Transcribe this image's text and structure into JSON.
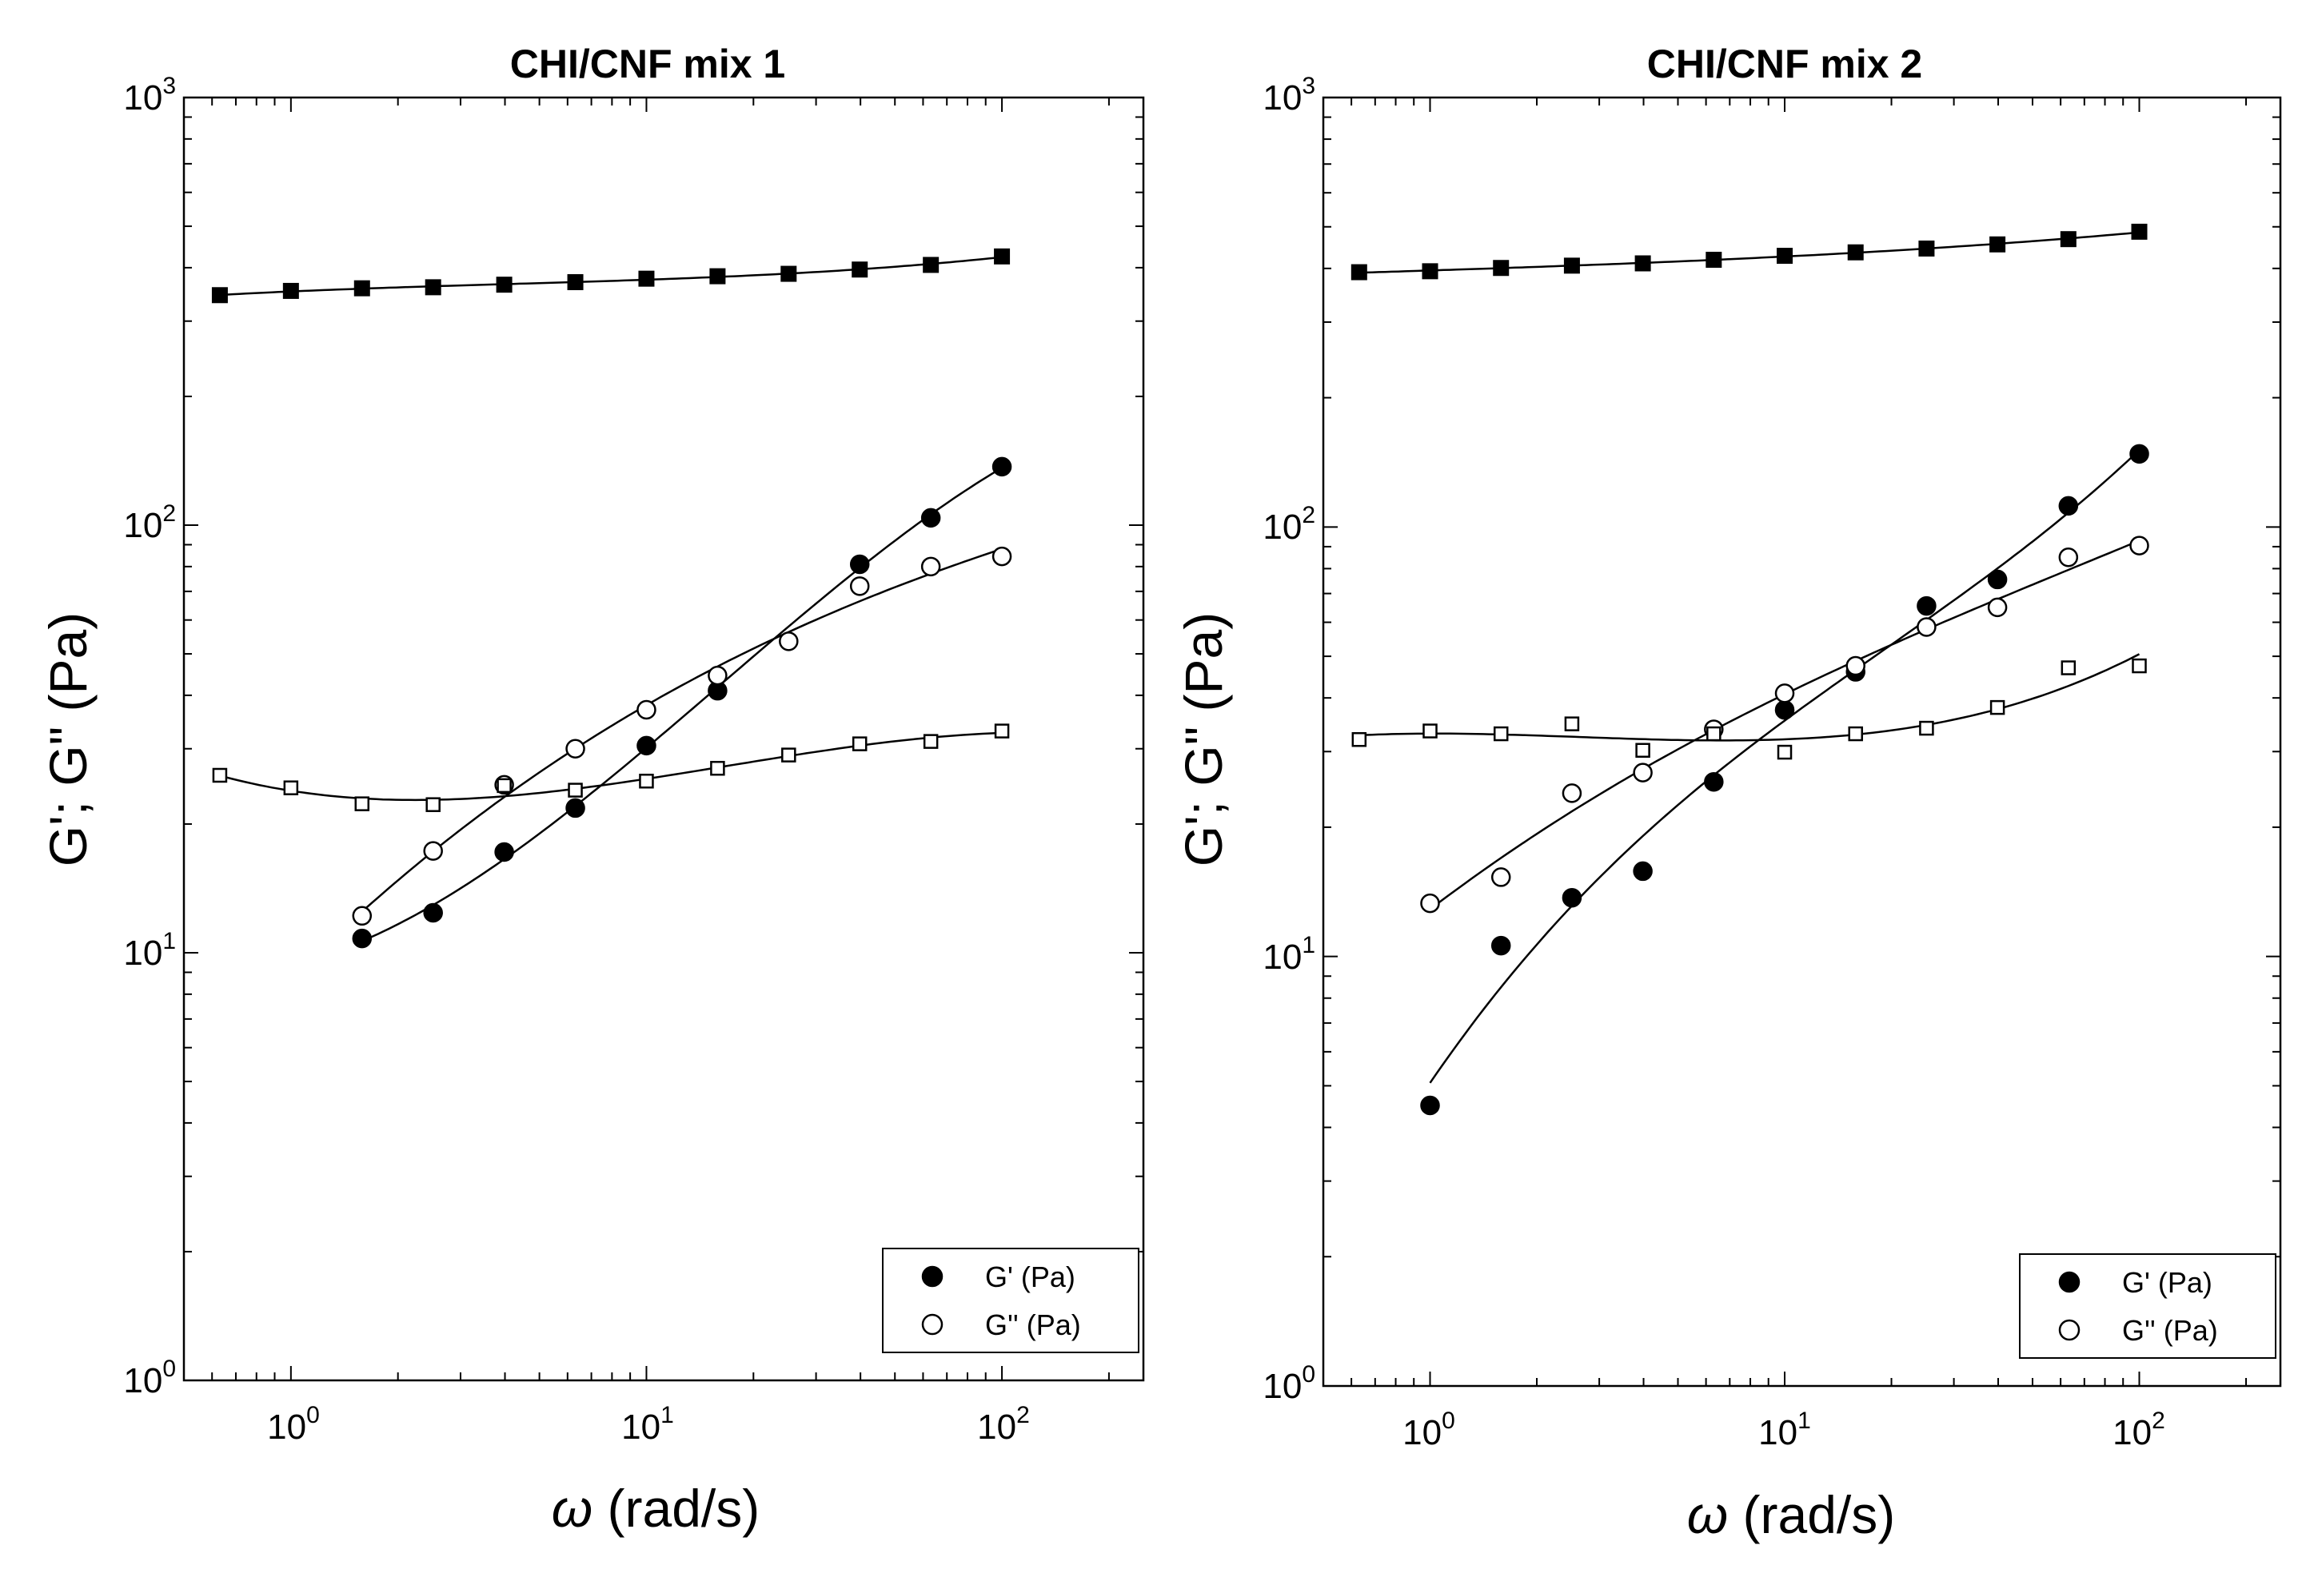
{
  "figure": {
    "panels": [
      {
        "title": "CHI/CNF mix 1",
        "xlabel_symbol": "ω",
        "xlabel_text": " (rad/s)",
        "ylabel": "G'; G\" (Pa)",
        "x_tick_labels": [
          {
            "base": "10",
            "exp": "0"
          },
          {
            "base": "10",
            "exp": "1"
          },
          {
            "base": "10",
            "exp": "2"
          }
        ],
        "y_tick_labels": [
          {
            "base": "10",
            "exp": "0"
          },
          {
            "base": "10",
            "exp": "1"
          },
          {
            "base": "10",
            "exp": "2"
          },
          {
            "base": "10",
            "exp": "3"
          }
        ],
        "legend": [
          "G' (Pa)",
          "G'' (Pa)"
        ]
      },
      {
        "title": "CHI/CNF mix 2",
        "xlabel_symbol": "ω",
        "xlabel_text": " (rad/s)",
        "ylabel": "G'; G\" (Pa)",
        "x_tick_labels": [
          {
            "base": "10",
            "exp": "0"
          },
          {
            "base": "10",
            "exp": "1"
          },
          {
            "base": "10",
            "exp": "2"
          }
        ],
        "y_tick_labels": [
          {
            "base": "10",
            "exp": "0"
          },
          {
            "base": "10",
            "exp": "1"
          },
          {
            "base": "10",
            "exp": "2"
          },
          {
            "base": "10",
            "exp": "3"
          }
        ],
        "legend": [
          "G' (Pa)",
          "G'' (Pa)"
        ]
      }
    ]
  },
  "chart_data": [
    {
      "type": "scatter",
      "title": "CHI/CNF mix 1",
      "xlabel": "ω (rad/s)",
      "ylabel": "G'; G\" (Pa)",
      "xscale": "log",
      "yscale": "log",
      "xlim": [
        0.5,
        250
      ],
      "ylim": [
        1,
        1000
      ],
      "legend_position": "bottom-right",
      "legend": [
        "G' (Pa)",
        "G'' (Pa)"
      ],
      "series": [
        {
          "name": "G' (Pa)",
          "marker": "filled-circle",
          "legend": true,
          "x": [
            1.585,
            2.512,
            3.981,
            6.31,
            10,
            15.85,
            39.81,
            63.1,
            100
          ],
          "y": [
            10.8,
            12.4,
            17.2,
            21.8,
            30.5,
            41,
            81,
            104,
            137
          ]
        },
        {
          "name": "G'' (Pa)",
          "marker": "open-circle",
          "legend": true,
          "x": [
            1.585,
            2.512,
            3.981,
            6.31,
            10,
            15.85,
            25.12,
            39.81,
            63.1,
            100
          ],
          "y": [
            12.2,
            17.3,
            24.7,
            30,
            37,
            44.5,
            53.5,
            72,
            80,
            84.5
          ]
        },
        {
          "name": "G' (filled squares)",
          "marker": "filled-square",
          "legend": false,
          "x": [
            0.631,
            1,
            1.585,
            2.512,
            3.981,
            6.31,
            10,
            15.85,
            25.12,
            39.81,
            63.1,
            100
          ],
          "y": [
            345,
            353,
            358,
            360,
            365,
            370,
            377,
            382,
            387,
            396,
            406,
            425
          ]
        },
        {
          "name": "G'' (open squares)",
          "marker": "open-square",
          "legend": false,
          "x": [
            0.631,
            1,
            1.585,
            2.512,
            3.981,
            6.31,
            10,
            15.85,
            25.12,
            39.81,
            63.1,
            100
          ],
          "y": [
            26,
            24.3,
            22.3,
            22.2,
            24.6,
            24,
            25.2,
            27,
            29,
            30.8,
            31.2,
            33
          ]
        }
      ]
    },
    {
      "type": "scatter",
      "title": "CHI/CNF mix 2",
      "xlabel": "ω (rad/s)",
      "ylabel": "G'; G\" (Pa)",
      "xscale": "log",
      "yscale": "log",
      "xlim": [
        0.5,
        250
      ],
      "ylim": [
        1,
        1000
      ],
      "legend_position": "bottom-right",
      "legend": [
        "G' (Pa)",
        "G'' (Pa)"
      ],
      "series": [
        {
          "name": "G' (Pa)",
          "marker": "filled-circle",
          "legend": true,
          "x": [
            1,
            1.585,
            2.512,
            3.981,
            6.31,
            10,
            15.85,
            25.12,
            39.81,
            63.1,
            100
          ],
          "y": [
            4.5,
            10.6,
            13.7,
            15.8,
            25.5,
            37.5,
            46,
            65.5,
            75.5,
            112,
            148
          ]
        },
        {
          "name": "G'' (Pa)",
          "marker": "open-circle",
          "legend": true,
          "x": [
            1,
            1.585,
            2.512,
            3.981,
            6.31,
            10,
            15.85,
            25.12,
            39.81,
            63.1,
            100
          ],
          "y": [
            13.3,
            15.3,
            24,
            26.8,
            33.8,
            41,
            47.5,
            58.5,
            65,
            85,
            90.5
          ]
        },
        {
          "name": "G' (filled squares)",
          "marker": "filled-square",
          "legend": false,
          "x": [
            0.631,
            1,
            1.585,
            2.512,
            3.981,
            6.31,
            10,
            15.85,
            25.12,
            39.81,
            63.1,
            100
          ],
          "y": [
            392,
            394,
            401,
            406,
            411,
            419,
            428,
            436,
            445,
            455,
            468,
            487
          ]
        },
        {
          "name": "G'' (open squares)",
          "marker": "open-square",
          "legend": false,
          "x": [
            0.631,
            1,
            1.585,
            2.512,
            3.981,
            6.31,
            10,
            15.85,
            25.12,
            39.81,
            63.1,
            100
          ],
          "y": [
            32,
            33.5,
            33,
            34.8,
            30.2,
            33,
            29.9,
            33,
            34,
            38,
            47,
            47.5
          ]
        }
      ]
    }
  ]
}
